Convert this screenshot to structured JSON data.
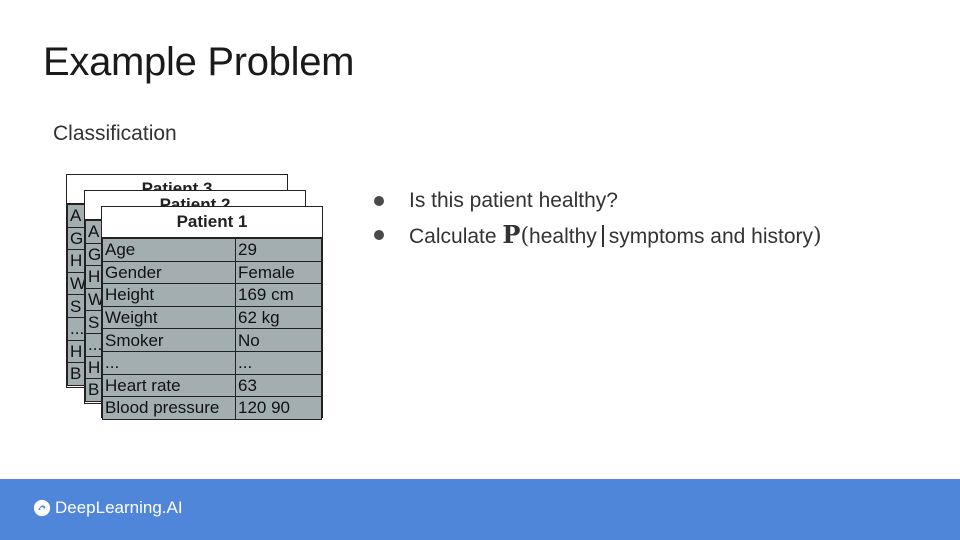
{
  "slide": {
    "title": "Example Problem",
    "subtitle": "Classification"
  },
  "cards": {
    "back2": {
      "header": "Patient 3",
      "rows": [
        "A",
        "G",
        "H",
        "W",
        "S",
        "...",
        "H",
        "B"
      ]
    },
    "back1": {
      "header": "Patient 2",
      "rows": [
        "A",
        "G",
        "H",
        "W",
        "S",
        "...",
        "H",
        "B"
      ]
    },
    "front": {
      "header": "Patient 1",
      "rows": [
        {
          "key": "Age",
          "value": "29"
        },
        {
          "key": "Gender",
          "value": "Female"
        },
        {
          "key": "Height",
          "value": "169 cm"
        },
        {
          "key": "Weight",
          "value": "62 kg"
        },
        {
          "key": "Smoker",
          "value": "No"
        },
        {
          "key": "...",
          "value": "..."
        },
        {
          "key": "Heart rate",
          "value": "63"
        },
        {
          "key": "Blood pressure",
          "value": "120 90"
        }
      ]
    }
  },
  "bullets": {
    "item1": "Is this patient healthy?",
    "item2_prefix": "Calculate",
    "item2_prob": "P",
    "item2_open": "(",
    "item2_left": "healthy",
    "item2_right": "symptoms and history",
    "item2_close": ")"
  },
  "footer": {
    "brand": "DeepLearning.AI",
    "brand_icon": "deeplearning-logo-icon",
    "color": "#4f86d9"
  },
  "colors": {
    "table_fill": "#a3aeb1"
  }
}
